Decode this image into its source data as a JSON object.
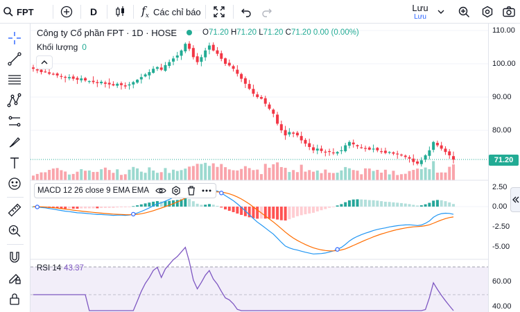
{
  "toolbar": {
    "symbol": "FPT",
    "interval": "D",
    "indicators_label": "Các chỉ báo",
    "save_label": "Lưu",
    "save_sub": "Lưu"
  },
  "legend": {
    "title": "Công ty Cổ phần FPT · 1D · HOSE",
    "o_label": "O",
    "o": "71.20",
    "h_label": "H",
    "h": "71.20",
    "l_label": "L",
    "l": "71.20",
    "c_label": "C",
    "c": "71.20",
    "change": "0.00 (0.00%)"
  },
  "volume_legend": {
    "label": "Khối lượng",
    "value": "0"
  },
  "macd_legend": {
    "label": "MACD 12 26 close 9 EMA EMA"
  },
  "rsi_legend": {
    "label": "RSI 14",
    "value": "43.37"
  },
  "price_scale": [
    "110.00",
    "100.00",
    "90.00",
    "80.00"
  ],
  "last_price": "71.20",
  "macd_scale": [
    "2.50",
    "0.00",
    "-2.50",
    "-5.00"
  ],
  "rsi_scale": [
    "60.00",
    "40.00"
  ],
  "colors": {
    "up": "#22ab94",
    "down": "#f23645",
    "macd": "#2196f3",
    "signal": "#ff6d00",
    "rsi": "#7e57c2",
    "accent": "#2962ff"
  },
  "chart_data": {
    "type": "candlestick",
    "symbol": "FPT",
    "interval": "1D",
    "exchange": "HOSE",
    "close_series_approx": [
      98.5,
      98,
      97.5,
      97.6,
      97,
      96.8,
      96.5,
      96.2,
      95.8,
      96,
      95.5,
      95.2,
      95.6,
      95,
      94.8,
      94.5,
      94.2,
      94.6,
      94,
      93.8,
      93.5,
      94,
      93.6,
      93.2,
      93.8,
      94.5,
      95.2,
      96,
      96.8,
      97.5,
      98.5,
      99,
      98.2,
      99.6,
      100.5,
      101.6,
      102.5,
      104,
      106,
      104.5,
      102,
      100.5,
      102,
      104,
      105.5,
      104,
      103,
      101.5,
      100,
      99.5,
      98.5,
      97,
      95.5,
      94,
      92.5,
      91,
      90,
      89.5,
      88,
      86.5,
      85,
      82,
      80,
      78.5,
      79.5,
      79,
      78.5,
      77,
      76,
      75,
      74,
      74.5,
      73.8,
      73.5,
      73.6,
      73.2,
      73.5,
      74,
      75.5,
      76.5,
      75.8,
      75.2,
      74.8,
      74.6,
      74.2,
      74.5,
      74,
      73.6,
      73.2,
      73.5,
      73,
      72.8,
      72.5,
      72,
      71.5,
      70.5,
      70,
      71,
      72.5,
      74,
      76.5,
      75.5,
      74.5,
      73.5,
      72.5,
      71.2
    ],
    "volume_visible": true,
    "macd_range": [
      -5.5,
      2.5
    ],
    "rsi_range": [
      30,
      70
    ]
  }
}
